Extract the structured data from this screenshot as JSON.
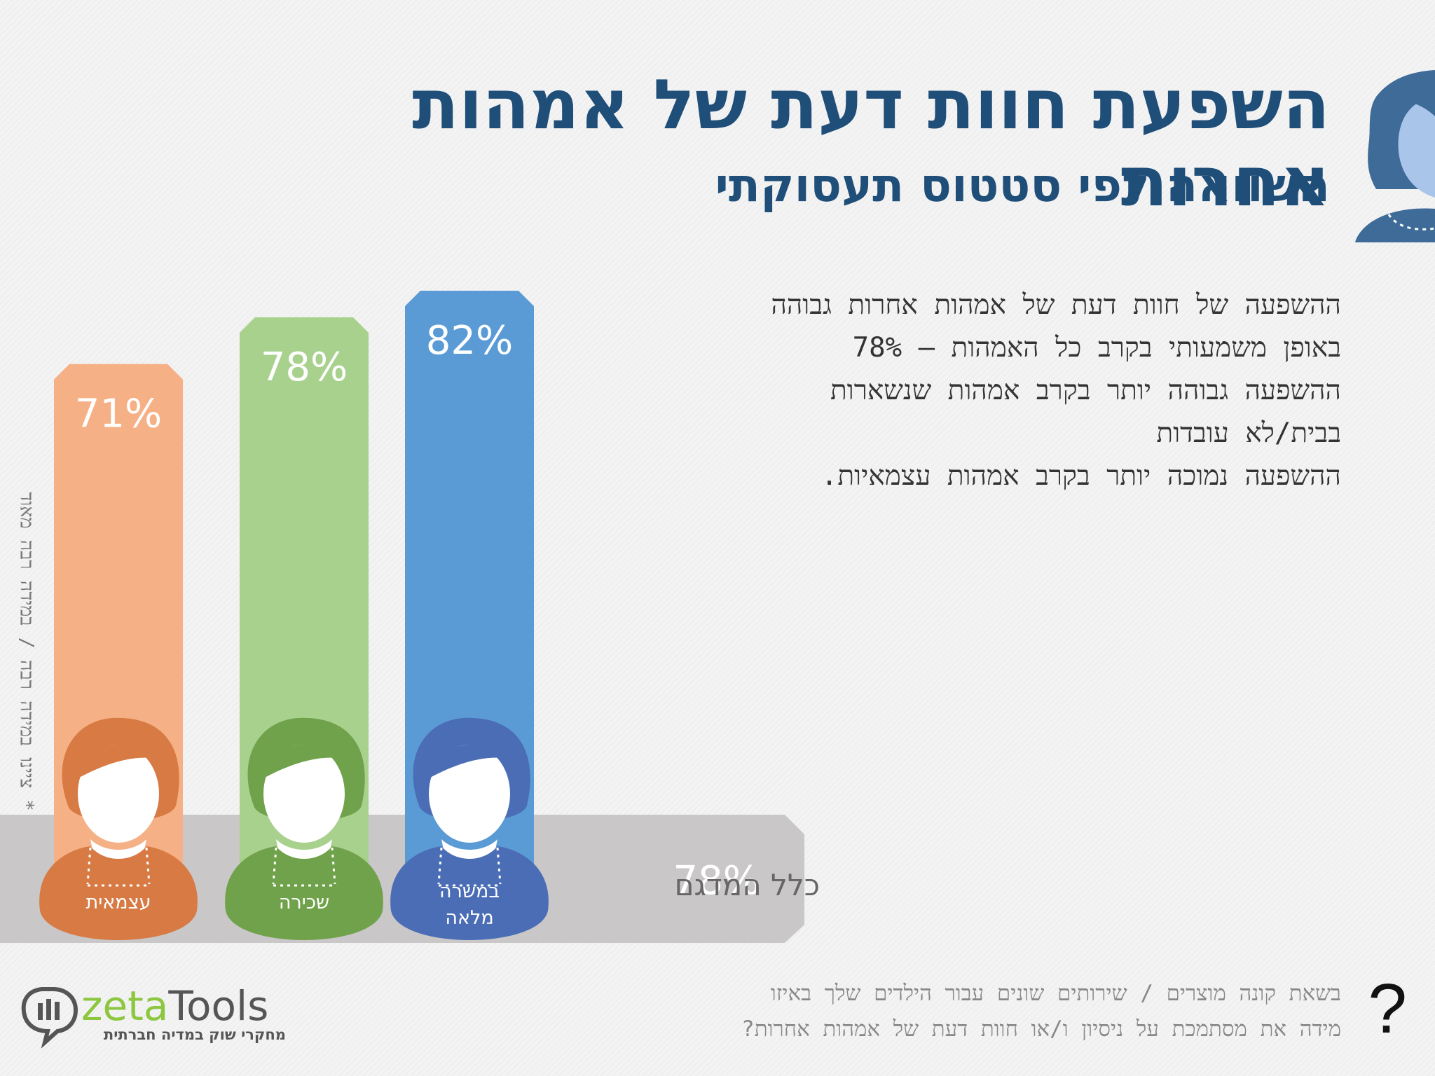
{
  "title": "השפעת חוות דעת של אמהות אחרות",
  "subtitle": "השוואה לפי סטטוס תעסוקתי",
  "summary_lines": [
    "ההשפעה של חוות דעת של אמהות אחרות גבוהה",
    "באופן משמעותי בקרב כל האמהות – 78%",
    "ההשפעה גבוהה יותר בקרב אמהות שנשארות",
    "בבית/לא עובדות",
    "ההשפעה נמוכה יותר בקרב אמהות עצמאיות."
  ],
  "side_note": "* ציינו במידה רבה / במידה רבה מאוד",
  "question_lines": [
    "בשאת קונה מוצרים / שירותים שונים עבור הילדים שלך באיזו",
    "מידה את מסתמכת על ניסיון ו/או חוות דעת של אמהות אחרות?"
  ],
  "question_mark": "?",
  "logo": {
    "name": "zetaTools",
    "tagline": "מחקרי שוק במדיה חברתית"
  },
  "chart_data": {
    "type": "bar",
    "unit": "%",
    "ylim": [
      0,
      100
    ],
    "categories": [
      "עצמאית",
      "שכירה",
      "במשרה מלאה"
    ],
    "category_lines": [
      [
        "עצמאית"
      ],
      [
        "שכירה"
      ],
      [
        "במשרה",
        "מלאה"
      ]
    ],
    "values": [
      71,
      78,
      82
    ],
    "value_labels": [
      "71%",
      "78%",
      "82%"
    ],
    "colors": [
      "#f5b185",
      "#a9d18e",
      "#5b9bd5"
    ],
    "figure_colors": [
      "#d77a44",
      "#70a24c",
      "#4a6db5"
    ],
    "overall": {
      "label": "כלל המדגם",
      "value": 78,
      "value_label": "78%",
      "color": "#c9c7c7"
    }
  }
}
